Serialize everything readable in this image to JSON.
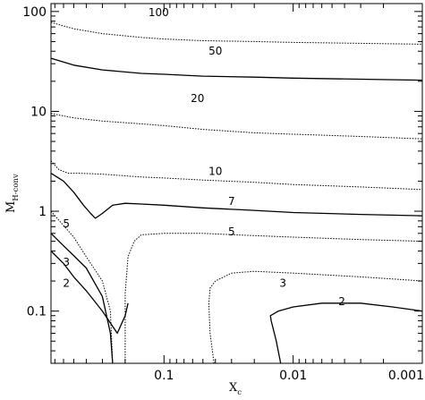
{
  "chart_data": {
    "type": "line",
    "title": "",
    "xlabel": "X",
    "xlabel_subscript": "c",
    "ylabel": "M",
    "ylabel_subscript": "H-conv",
    "x_scale": "log",
    "y_scale": "log",
    "x_reversed": true,
    "xlim": [
      0.75,
      0.001
    ],
    "ylim": [
      0.03,
      120
    ],
    "x_ticks": [
      {
        "value": 0.1,
        "label": "0.1"
      },
      {
        "value": 0.01,
        "label": "0.01"
      },
      {
        "value": 0.001,
        "label": "0.001"
      }
    ],
    "y_ticks": [
      {
        "value": 0.1,
        "label": "0.1"
      },
      {
        "value": 1,
        "label": "1"
      },
      {
        "value": 10,
        "label": "10"
      },
      {
        "value": 100,
        "label": "100"
      }
    ],
    "grid": false,
    "series": [
      {
        "name": "100",
        "style": "dotted",
        "label_at": [
          0.11,
          98
        ],
        "points": [
          [
            0.75,
            78
          ],
          [
            0.5,
            67
          ],
          [
            0.3,
            60
          ],
          [
            0.15,
            55
          ],
          [
            0.1,
            53
          ],
          [
            0.05,
            51
          ],
          [
            0.02,
            50
          ],
          [
            0.01,
            49
          ],
          [
            0.003,
            48
          ],
          [
            0.001,
            47
          ]
        ]
      },
      {
        "name": "50",
        "style": "solid",
        "label_at": [
          0.04,
          40
        ],
        "points": [
          [
            0.75,
            34
          ],
          [
            0.5,
            29
          ],
          [
            0.3,
            26
          ],
          [
            0.15,
            24
          ],
          [
            0.1,
            23.5
          ],
          [
            0.05,
            22.5
          ],
          [
            0.02,
            22
          ],
          [
            0.01,
            21.5
          ],
          [
            0.003,
            21
          ],
          [
            0.001,
            20.5
          ]
        ]
      },
      {
        "name": "20",
        "style": "dotted",
        "label_at": [
          0.055,
          13.5
        ],
        "points": [
          [
            0.75,
            9.5
          ],
          [
            0.5,
            8.6
          ],
          [
            0.3,
            8
          ],
          [
            0.15,
            7.5
          ],
          [
            0.1,
            7.2
          ],
          [
            0.05,
            6.6
          ],
          [
            0.02,
            6.1
          ],
          [
            0.01,
            5.9
          ],
          [
            0.003,
            5.6
          ],
          [
            0.001,
            5.3
          ]
        ]
      },
      {
        "name": "10",
        "style": "dotted",
        "label_at": [
          0.04,
          2.5
        ],
        "points": [
          [
            0.75,
            3.2
          ],
          [
            0.65,
            2.6
          ],
          [
            0.55,
            2.4
          ],
          [
            0.45,
            2.4
          ],
          [
            0.3,
            2.35
          ],
          [
            0.15,
            2.2
          ],
          [
            0.1,
            2.15
          ],
          [
            0.05,
            2.05
          ],
          [
            0.02,
            1.95
          ],
          [
            0.01,
            1.85
          ],
          [
            0.003,
            1.75
          ],
          [
            0.001,
            1.65
          ]
        ]
      },
      {
        "name": "7",
        "style": "solid",
        "label_at": [
          0.03,
          1.25
        ],
        "points": [
          [
            0.75,
            2.4
          ],
          [
            0.6,
            2.0
          ],
          [
            0.5,
            1.55
          ],
          [
            0.42,
            1.15
          ],
          [
            0.37,
            0.95
          ],
          [
            0.34,
            0.85
          ],
          [
            0.3,
            0.95
          ],
          [
            0.25,
            1.15
          ],
          [
            0.2,
            1.2
          ],
          [
            0.15,
            1.18
          ],
          [
            0.1,
            1.15
          ],
          [
            0.05,
            1.08
          ],
          [
            0.02,
            1.02
          ],
          [
            0.01,
            0.97
          ],
          [
            0.003,
            0.93
          ],
          [
            0.001,
            0.9
          ]
        ]
      },
      {
        "name": "5",
        "style": "dotted",
        "label_at": [
          0.57,
          0.75
        ],
        "points": [
          [
            0.75,
            1.0
          ],
          [
            0.6,
            0.72
          ],
          [
            0.5,
            0.55
          ],
          [
            0.4,
            0.35
          ],
          [
            0.3,
            0.2
          ],
          [
            0.26,
            0.1
          ],
          [
            0.25,
            0.03
          ]
        ]
      },
      {
        "name": "5",
        "style": "dotted",
        "label_at": [
          0.03,
          0.62
        ],
        "points": [
          [
            0.2,
            0.03
          ],
          [
            0.2,
            0.15
          ],
          [
            0.19,
            0.35
          ],
          [
            0.17,
            0.5
          ],
          [
            0.15,
            0.58
          ],
          [
            0.1,
            0.6
          ],
          [
            0.05,
            0.6
          ],
          [
            0.02,
            0.57
          ],
          [
            0.01,
            0.55
          ],
          [
            0.003,
            0.52
          ],
          [
            0.001,
            0.5
          ]
        ]
      },
      {
        "name": "3",
        "style": "solid",
        "label_at": [
          0.57,
          0.31
        ],
        "points": [
          [
            0.75,
            0.6
          ],
          [
            0.6,
            0.45
          ],
          [
            0.5,
            0.36
          ],
          [
            0.4,
            0.27
          ],
          [
            0.3,
            0.14
          ],
          [
            0.26,
            0.06
          ],
          [
            0.25,
            0.03
          ]
        ]
      },
      {
        "name": "3",
        "style": "dotted",
        "label_at": [
          0.012,
          0.19
        ],
        "points": [
          [
            0.041,
            0.03
          ],
          [
            0.044,
            0.06
          ],
          [
            0.045,
            0.12
          ],
          [
            0.044,
            0.17
          ],
          [
            0.04,
            0.2
          ],
          [
            0.03,
            0.24
          ],
          [
            0.02,
            0.25
          ],
          [
            0.01,
            0.24
          ],
          [
            0.003,
            0.22
          ],
          [
            0.001,
            0.2
          ]
        ]
      },
      {
        "name": "2",
        "style": "solid",
        "label_at": [
          0.57,
          0.19
        ],
        "points": [
          [
            0.75,
            0.4
          ],
          [
            0.6,
            0.3
          ],
          [
            0.5,
            0.22
          ],
          [
            0.4,
            0.16
          ],
          [
            0.3,
            0.1
          ],
          [
            0.23,
            0.06
          ],
          [
            0.2,
            0.09
          ],
          [
            0.19,
            0.12
          ]
        ]
      },
      {
        "name": "2",
        "style": "solid",
        "label_at": [
          0.0042,
          0.125
        ],
        "points": [
          [
            0.0125,
            0.03
          ],
          [
            0.0135,
            0.05
          ],
          [
            0.0148,
            0.08
          ],
          [
            0.015,
            0.09
          ],
          [
            0.013,
            0.1
          ],
          [
            0.01,
            0.11
          ],
          [
            0.006,
            0.12
          ],
          [
            0.003,
            0.12
          ],
          [
            0.0017,
            0.11
          ],
          [
            0.001,
            0.1
          ]
        ]
      }
    ]
  }
}
